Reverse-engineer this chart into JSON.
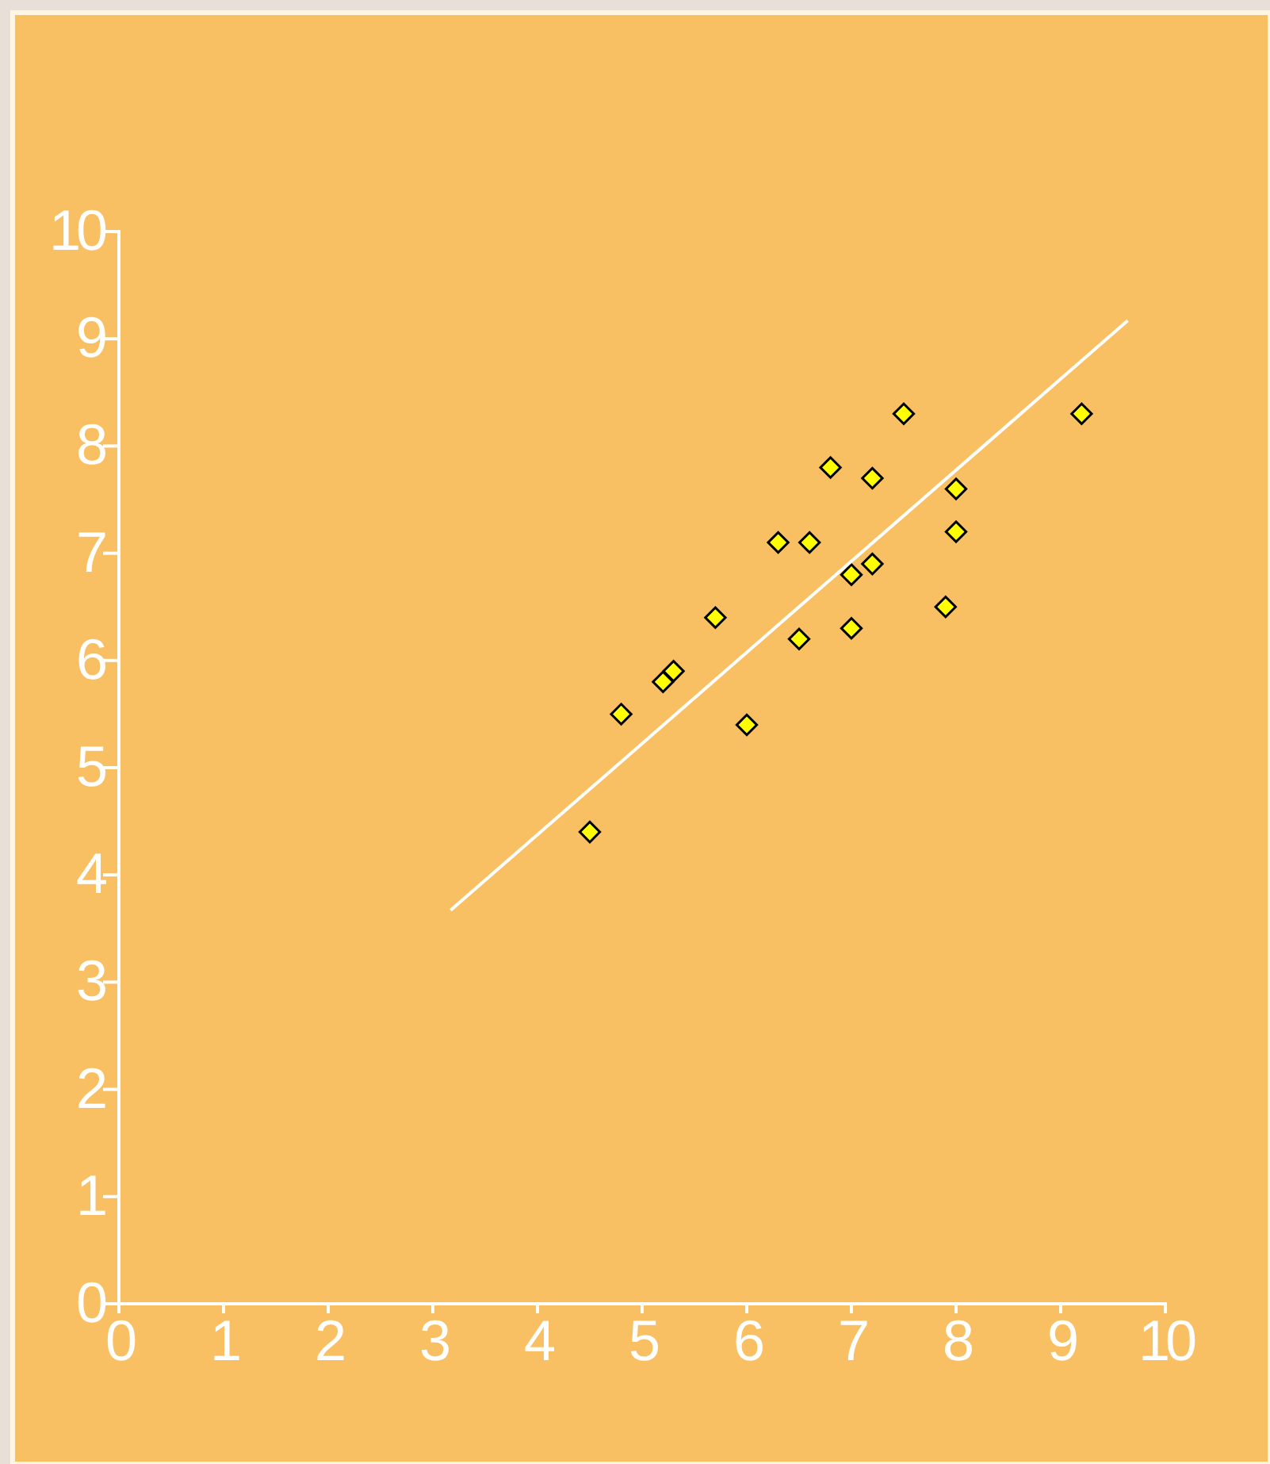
{
  "chart_data": {
    "type": "scatter",
    "marker": "diamond",
    "grid": false,
    "xlim": [
      0,
      10
    ],
    "ylim": [
      0,
      10
    ],
    "xticks": [
      0,
      1,
      2,
      3,
      4,
      5,
      6,
      7,
      8,
      9,
      10
    ],
    "yticks": [
      0,
      1,
      2,
      3,
      4,
      5,
      6,
      7,
      8,
      9,
      10
    ],
    "series": [
      {
        "color": "#ffff00",
        "x": [
          4.5,
          4.8,
          5.2,
          5.3,
          5.7,
          6.0,
          6.3,
          6.5,
          6.6,
          6.8,
          7.0,
          7.0,
          7.2,
          7.2,
          7.5,
          7.9,
          8.0,
          8.0,
          9.2
        ],
        "values": [
          4.4,
          5.5,
          5.8,
          5.9,
          6.4,
          5.4,
          7.1,
          6.2,
          7.1,
          7.8,
          6.8,
          6.3,
          7.7,
          6.9,
          8.3,
          6.5,
          7.6,
          7.2,
          8.3
        ]
      },
      {
        "type": "line",
        "marker": "none",
        "color": "#ffffff",
        "x": [
          3.17,
          9.64
        ],
        "values": [
          3.67,
          9.17
        ]
      }
    ]
  }
}
